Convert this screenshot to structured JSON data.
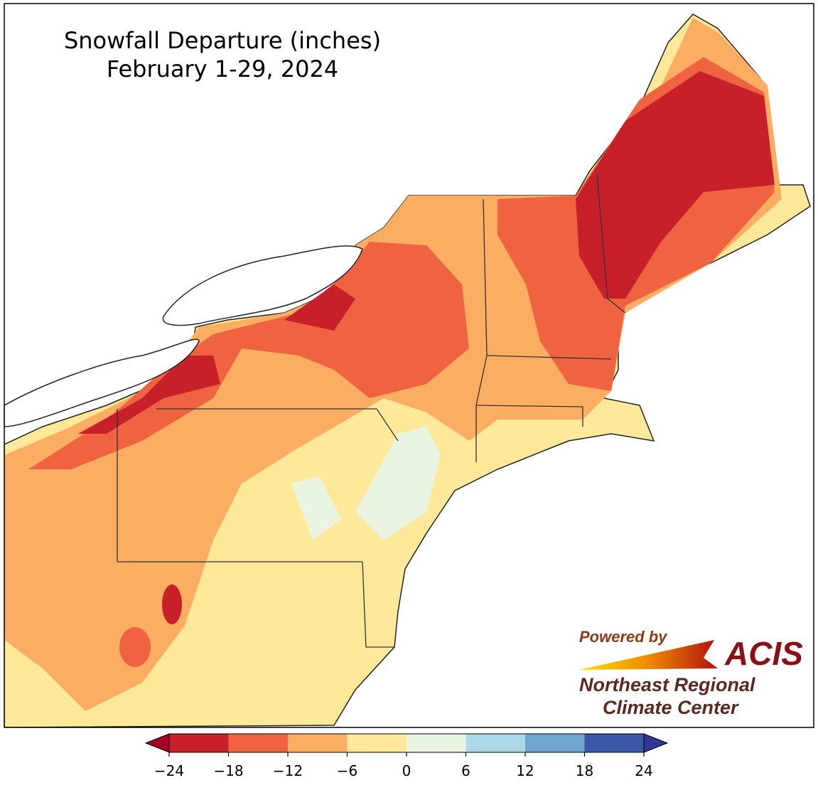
{
  "title": [
    "Snowfall Departure (inches)",
    "February 1-29, 2024"
  ],
  "colorbar": {
    "ticks": [
      {
        "value": -24,
        "label": "−24"
      },
      {
        "value": -18,
        "label": "−18"
      },
      {
        "value": -12,
        "label": "−12"
      },
      {
        "value": -6,
        "label": "−6"
      },
      0,
      6,
      12,
      18,
      24
    ],
    "colors": [
      "#c8202a",
      "#ef6340",
      "#fbae62",
      "#fee89a",
      "#e9f5e1",
      "#acd9e9",
      "#6fa5cf",
      "#3a56a6"
    ],
    "under_color": "#a50026",
    "over_color": "#313695"
  },
  "logo": {
    "powered_by": "Powered by",
    "acis": "ACIS",
    "org_line1": "Northeast Regional",
    "org_line2": "Climate Center"
  }
}
